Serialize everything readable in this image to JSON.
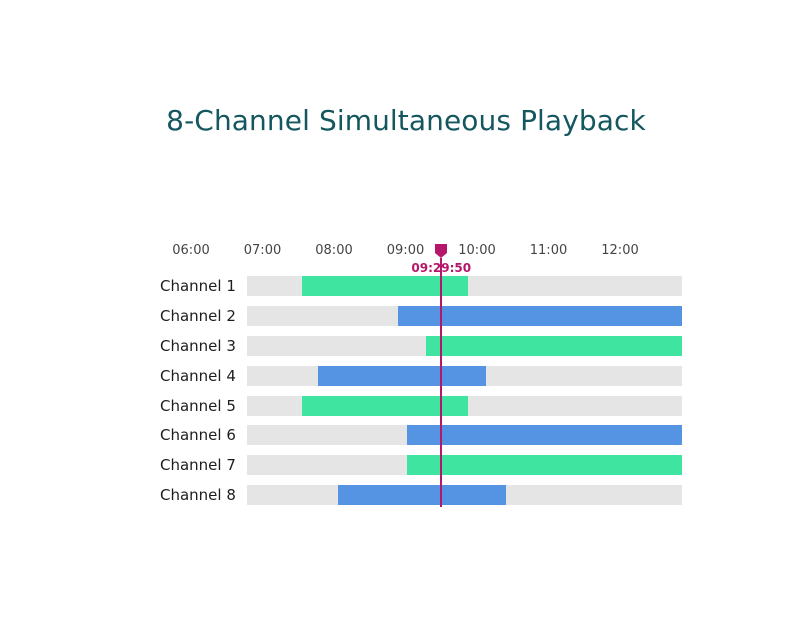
{
  "title": "8-Channel Simultaneous Playback",
  "timeline": {
    "start_hour": 6,
    "end_hour": 12.9,
    "ticks": [
      "06:00",
      "07:00",
      "08:00",
      "09:00",
      "10:00",
      "11:00",
      "12:00"
    ],
    "playhead": {
      "time_label": "09:29:50",
      "hour": 9.5,
      "color": "#b5176a"
    }
  },
  "colors": {
    "green": "#3ee49f",
    "blue": "#5594e3",
    "track": "#e5e5e5"
  },
  "channels": [
    {
      "label": "Channel 1",
      "start": 7.55,
      "end": 9.87,
      "color": "green"
    },
    {
      "label": "Channel 2",
      "start": 8.9,
      "end": 12.9,
      "color": "blue"
    },
    {
      "label": "Channel 3",
      "start": 9.28,
      "end": 12.9,
      "color": "green"
    },
    {
      "label": "Channel 4",
      "start": 7.78,
      "end": 10.12,
      "color": "blue"
    },
    {
      "label": "Channel 5",
      "start": 7.55,
      "end": 9.87,
      "color": "green"
    },
    {
      "label": "Channel 6",
      "start": 9.02,
      "end": 12.9,
      "color": "blue"
    },
    {
      "label": "Channel 7",
      "start": 9.02,
      "end": 12.9,
      "color": "green"
    },
    {
      "label": "Channel 8",
      "start": 8.05,
      "end": 10.4,
      "color": "blue"
    }
  ]
}
